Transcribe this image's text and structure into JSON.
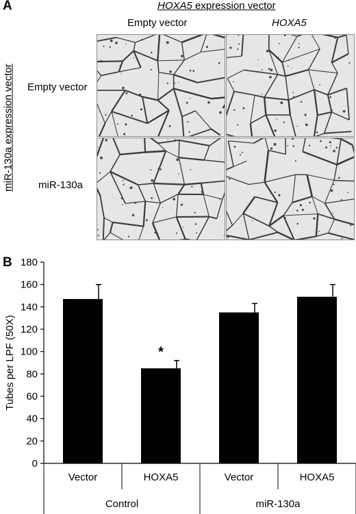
{
  "panel_a": {
    "label": "A",
    "top_header_italic": "HOXA5",
    "top_header_rest": " expression vector",
    "col_labels": [
      "Empty vector",
      "HOXA5"
    ],
    "side_header": "miR-130a expression vector",
    "row_labels": [
      "Empty vector",
      "miR-130a"
    ]
  },
  "panel_b": {
    "label": "B"
  },
  "chart_data": {
    "type": "bar",
    "ylabel": "Tubes per LPF (50X)",
    "ylim": [
      0,
      180
    ],
    "yticks": [
      "0",
      "20",
      "40",
      "60",
      "80",
      "100",
      "120",
      "140",
      "160",
      "180"
    ],
    "categories": [
      "Vector",
      "HOXA5",
      "Vector",
      "HOXA5"
    ],
    "groups": [
      "Control",
      "miR-130a"
    ],
    "values": [
      147,
      85,
      135,
      149
    ],
    "errors": [
      13,
      7,
      8,
      11
    ],
    "annotations": [
      "",
      "*",
      "",
      ""
    ],
    "bar_color": "#000000",
    "grid": false
  }
}
